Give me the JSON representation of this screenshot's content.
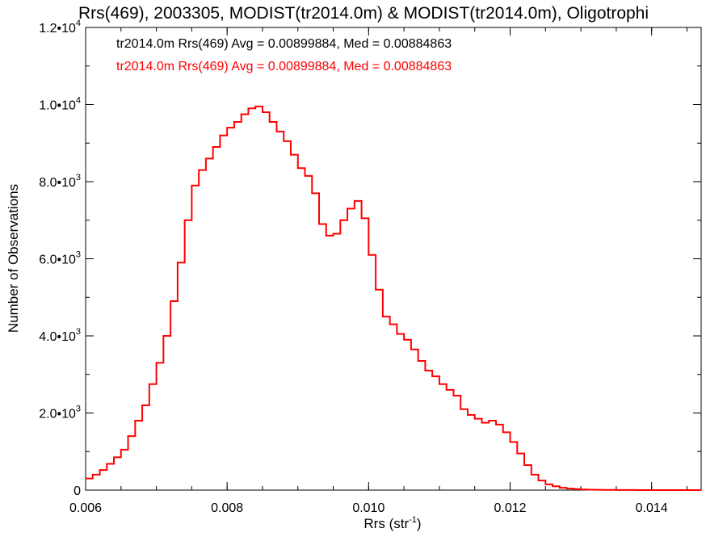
{
  "chart_data": {
    "type": "line",
    "title": "Rrs(469), 2003305, MODIST(tr2014.0m) & MODIST(tr2014.0m), Oligotrophi",
    "xlabel_main": "Rrs (str",
    "xlabel_sup": "-1",
    "xlabel_close": ")",
    "ylabel": "Number of Observations",
    "xlim": [
      0.006,
      0.0147
    ],
    "ylim": [
      0,
      12000
    ],
    "x_ticks": [
      {
        "value": 0.006,
        "label": "0.006"
      },
      {
        "value": 0.008,
        "label": "0.008"
      },
      {
        "value": 0.01,
        "label": "0.010"
      },
      {
        "value": 0.012,
        "label": "0.012"
      },
      {
        "value": 0.014,
        "label": "0.014"
      }
    ],
    "y_ticks": [
      {
        "value": 0,
        "base": "0",
        "exp": ""
      },
      {
        "value": 2000,
        "base": "2.0•10",
        "exp": "3"
      },
      {
        "value": 4000,
        "base": "4.0•10",
        "exp": "3"
      },
      {
        "value": 6000,
        "base": "6.0•10",
        "exp": "3"
      },
      {
        "value": 8000,
        "base": "8.0•10",
        "exp": "3"
      },
      {
        "value": 10000,
        "base": "1.0•10",
        "exp": "4"
      },
      {
        "value": 12000,
        "base": "1.2•10",
        "exp": "4"
      }
    ],
    "annotations": [
      {
        "text": "tr2014.0m Rrs(469) Avg = 0.00899884, Med = 0.00884863",
        "color": "#000000"
      },
      {
        "text": "tr2014.0m Rrs(469) Avg = 0.00899884, Med = 0.00884863",
        "color": "#ff0000"
      }
    ],
    "series": [
      {
        "color": "#ff0000",
        "x": [
          0.006,
          0.0061,
          0.0062,
          0.0063,
          0.0064,
          0.0065,
          0.0066,
          0.0067,
          0.0068,
          0.0069,
          0.007,
          0.0071,
          0.0072,
          0.0073,
          0.0074,
          0.0075,
          0.0076,
          0.0077,
          0.0078,
          0.0079,
          0.008,
          0.0081,
          0.0082,
          0.0083,
          0.0084,
          0.0085,
          0.0086,
          0.0087,
          0.0088,
          0.0089,
          0.009,
          0.0091,
          0.0092,
          0.0093,
          0.0094,
          0.0095,
          0.0096,
          0.0097,
          0.0098,
          0.0099,
          0.01,
          0.0101,
          0.0102,
          0.0103,
          0.0104,
          0.0105,
          0.0106,
          0.0107,
          0.0108,
          0.0109,
          0.011,
          0.0111,
          0.0112,
          0.0113,
          0.0114,
          0.0115,
          0.0116,
          0.0117,
          0.0118,
          0.0119,
          0.012,
          0.0121,
          0.0122,
          0.0123,
          0.0124,
          0.0125,
          0.0126,
          0.0127,
          0.0128,
          0.0129,
          0.013,
          0.0131,
          0.0132,
          0.0133,
          0.0134,
          0.0135,
          0.0136,
          0.0138,
          0.014,
          0.0142,
          0.0144,
          0.0146,
          0.0147
        ],
        "y": [
          300,
          400,
          520,
          680,
          850,
          1050,
          1400,
          1800,
          2200,
          2750,
          3300,
          4000,
          4900,
          5900,
          7000,
          7900,
          8300,
          8600,
          8900,
          9200,
          9400,
          9550,
          9750,
          9900,
          9950,
          9800,
          9550,
          9300,
          9050,
          8700,
          8350,
          8150,
          7700,
          6900,
          6600,
          6650,
          7000,
          7300,
          7500,
          7050,
          6100,
          5200,
          4500,
          4300,
          4050,
          3900,
          3650,
          3350,
          3100,
          2950,
          2750,
          2600,
          2450,
          2100,
          1950,
          1850,
          1750,
          1800,
          1700,
          1500,
          1250,
          950,
          650,
          400,
          250,
          150,
          100,
          60,
          40,
          25,
          15,
          10,
          8,
          5,
          4,
          3,
          2,
          1,
          1,
          0,
          0,
          0,
          0
        ]
      }
    ]
  }
}
